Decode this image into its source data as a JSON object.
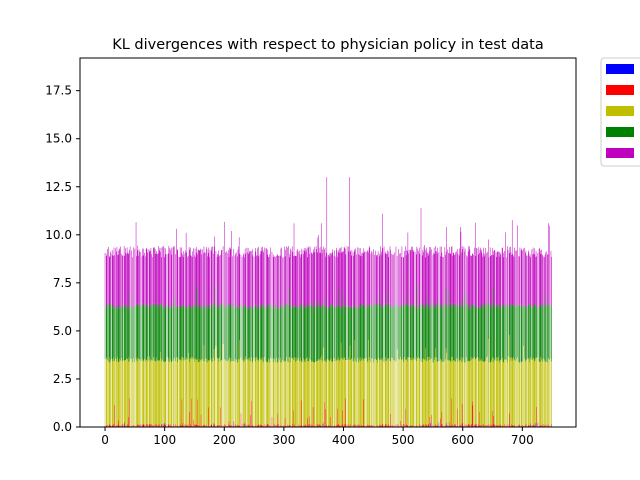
{
  "chart_data": {
    "type": "bar",
    "stacked": true,
    "title": "KL divergences with respect to physician policy in test data",
    "xlabel": "",
    "ylabel": "",
    "xlim": [
      -42,
      790
    ],
    "ylim": [
      0,
      19.2
    ],
    "x_ticks": [
      0,
      100,
      200,
      300,
      400,
      500,
      600,
      700
    ],
    "y_ticks": [
      0.0,
      2.5,
      5.0,
      7.5,
      10.0,
      12.5,
      15.0,
      17.5
    ],
    "x_tick_labels": [
      "0",
      "100",
      "200",
      "300",
      "400",
      "500",
      "600",
      "700"
    ],
    "y_tick_labels": [
      "0.0",
      "2.5",
      "5.0",
      "7.5",
      "10.0",
      "12.5",
      "15.0",
      "17.5"
    ],
    "grid": false,
    "legend_position": "outside top-right",
    "n_bars": 750,
    "series": [
      {
        "color": "#0000ff",
        "typical_value": 0.02
      },
      {
        "color": "#ff0000",
        "typical_value": 0.15
      },
      {
        "color": "#bfbf00",
        "typical_value": 3.3
      },
      {
        "color": "#008000",
        "typical_value": 2.8
      },
      {
        "color": "#bf00bf",
        "typical_value": 2.7
      }
    ],
    "cumulative_levels": {
      "blue_top": 0.02,
      "red_top": 0.15,
      "yellow_top": 3.5,
      "green_top": 6.3,
      "magenta_top": 9.0
    },
    "notable_peaks": [
      {
        "x": 372,
        "total": 13.0
      },
      {
        "x": 410,
        "total": 13.0
      },
      {
        "x": 530,
        "total": 11.4
      },
      {
        "x": 465,
        "total": 11.1
      }
    ],
    "legend_entries": [
      "",
      "",
      "",
      "",
      ""
    ]
  }
}
